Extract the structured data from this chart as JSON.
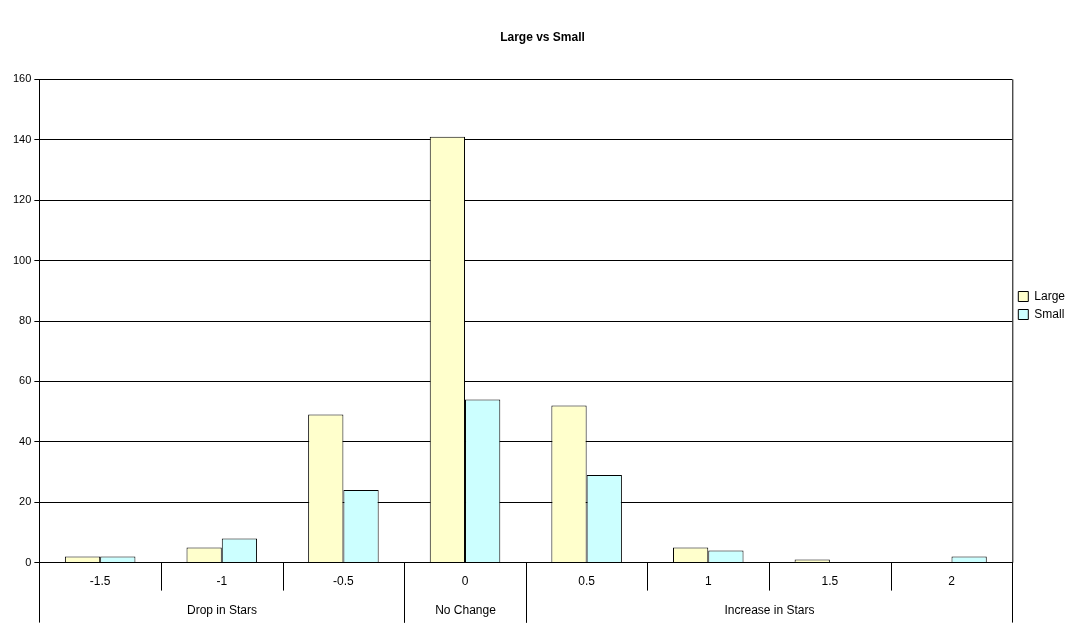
{
  "chart_data": {
    "type": "bar",
    "title": "Large vs Small",
    "categories": [
      "-1.5",
      "-1",
      "-0.5",
      "0",
      "0.5",
      "1",
      "1.5",
      "2"
    ],
    "series": [
      {
        "name": "Large",
        "color": "#ffffcc",
        "values": [
          2,
          5,
          49,
          141,
          52,
          5,
          1,
          0
        ]
      },
      {
        "name": "Small",
        "color": "#ccffff",
        "values": [
          2,
          8,
          24,
          54,
          29,
          4,
          0,
          2
        ]
      }
    ],
    "ylim": [
      0,
      160
    ],
    "yticks": [
      0,
      20,
      40,
      60,
      80,
      100,
      120,
      140,
      160
    ],
    "grid": "y",
    "legend": "right",
    "annotations": [
      "Drop in Stars",
      "No Change",
      "Increase in Stars"
    ]
  }
}
